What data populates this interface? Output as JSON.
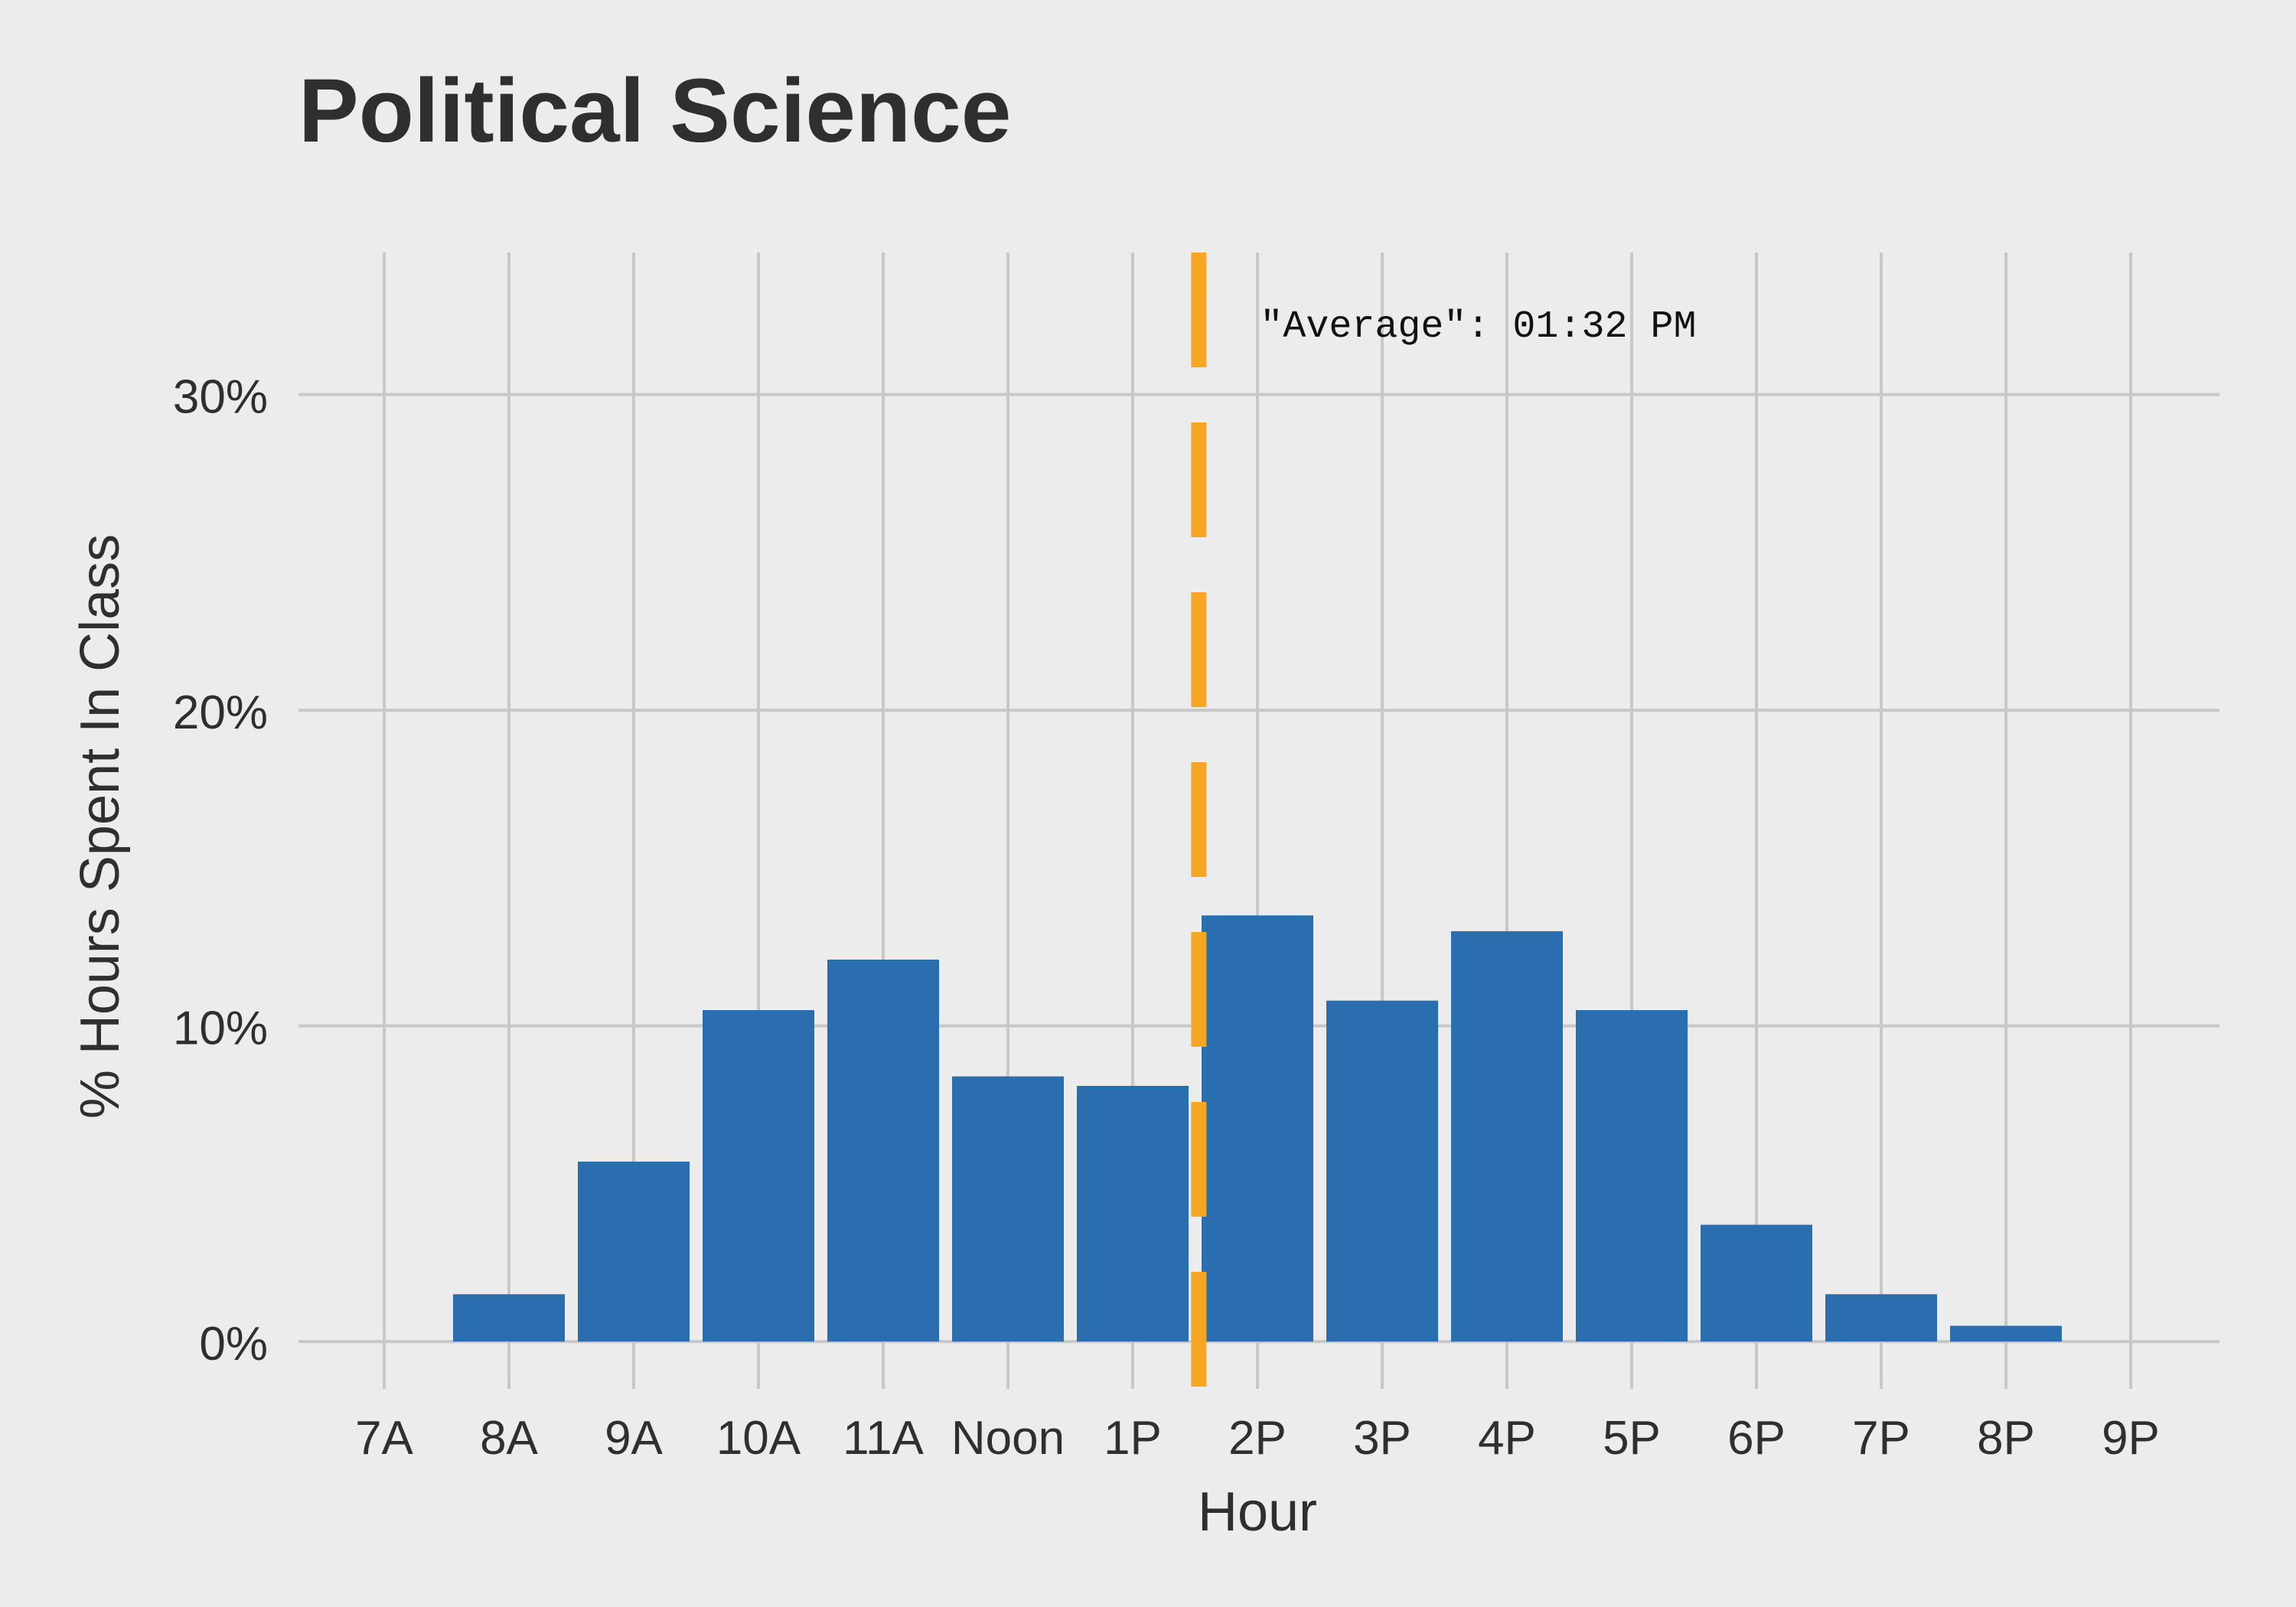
{
  "chart_data": {
    "type": "bar",
    "title": "Political Science",
    "xlabel": "Hour",
    "ylabel": "% Hours Spent In Class",
    "categories": [
      "7A",
      "8A",
      "9A",
      "10A",
      "11A",
      "Noon",
      "1P",
      "2P",
      "3P",
      "4P",
      "5P",
      "6P",
      "7P",
      "8P",
      "9P"
    ],
    "values": [
      0.0,
      1.5,
      5.7,
      10.5,
      12.1,
      8.4,
      8.1,
      13.5,
      10.8,
      13.0,
      10.5,
      3.7,
      1.5,
      0.5,
      0.0
    ],
    "value_unit": "%",
    "yticks": [
      0,
      10,
      20,
      30
    ],
    "ytick_labels": [
      "0%",
      "10%",
      "20%",
      "30%"
    ],
    "ylim": [
      -1.5,
      34.5
    ],
    "grid": true,
    "legend": "none",
    "annotation": {
      "label": "\"Average\": 01:32 PM",
      "x_hour": 13.53
    },
    "colors": {
      "bar": "#2a6eb0",
      "average_line": "#f6a623",
      "grid": "#c8c8c8",
      "background": "#ececec"
    }
  }
}
